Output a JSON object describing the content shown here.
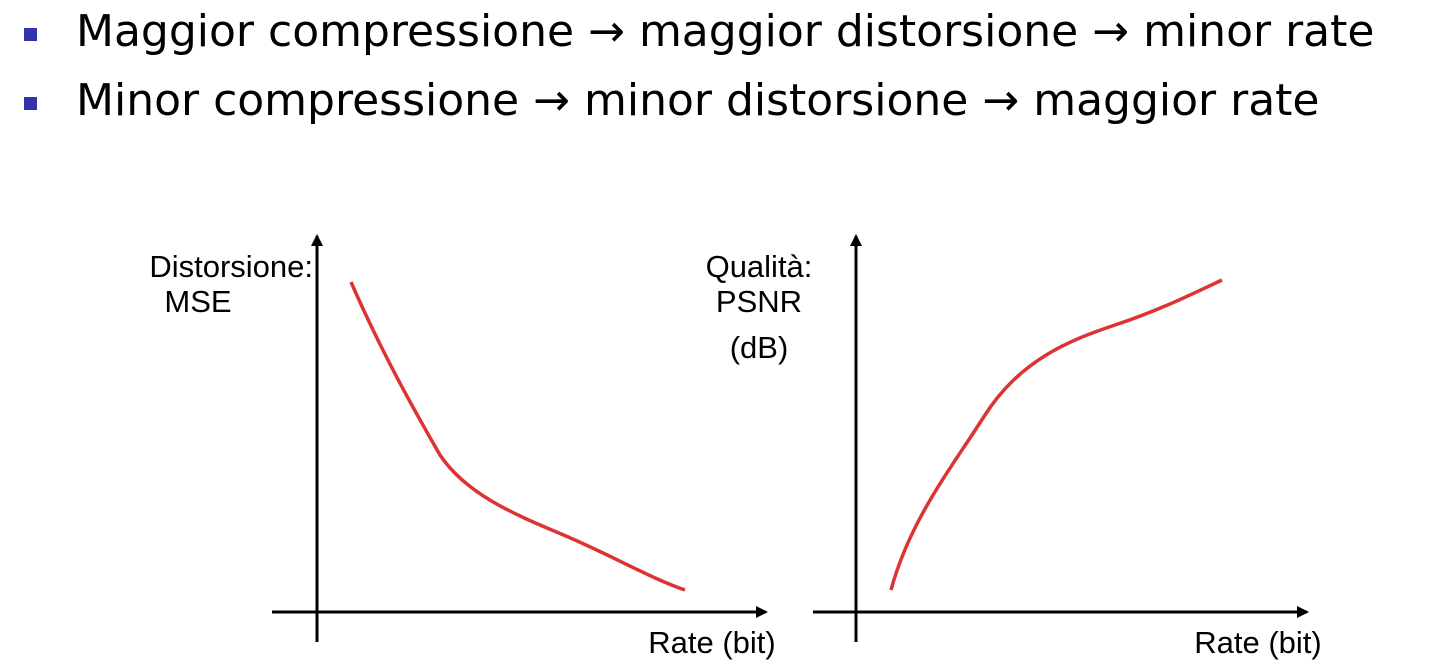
{
  "bullets": [
    {
      "before": "Maggior compressione",
      "arrow": "→",
      "middle": "maggior distorsione",
      "arrow2": "→",
      "after": "minor rate"
    },
    {
      "before": "Minor compressione",
      "arrow": "→",
      "middle": "minor distorsione",
      "arrow2": "→",
      "after": "maggior rate"
    }
  ],
  "left_plot": {
    "ylabel_line1": "Distorsione:",
    "ylabel_line2": "MSE",
    "xlabel": "Rate (bit)"
  },
  "right_plot": {
    "ylabel_line1": "Qualità:",
    "ylabel_line2": "PSNR",
    "ylabel_line3": "(dB)",
    "xlabel": "Rate (bit)"
  },
  "colors": {
    "curve": "#dd3333",
    "bullet": "#3333aa",
    "axis": "#000000"
  }
}
